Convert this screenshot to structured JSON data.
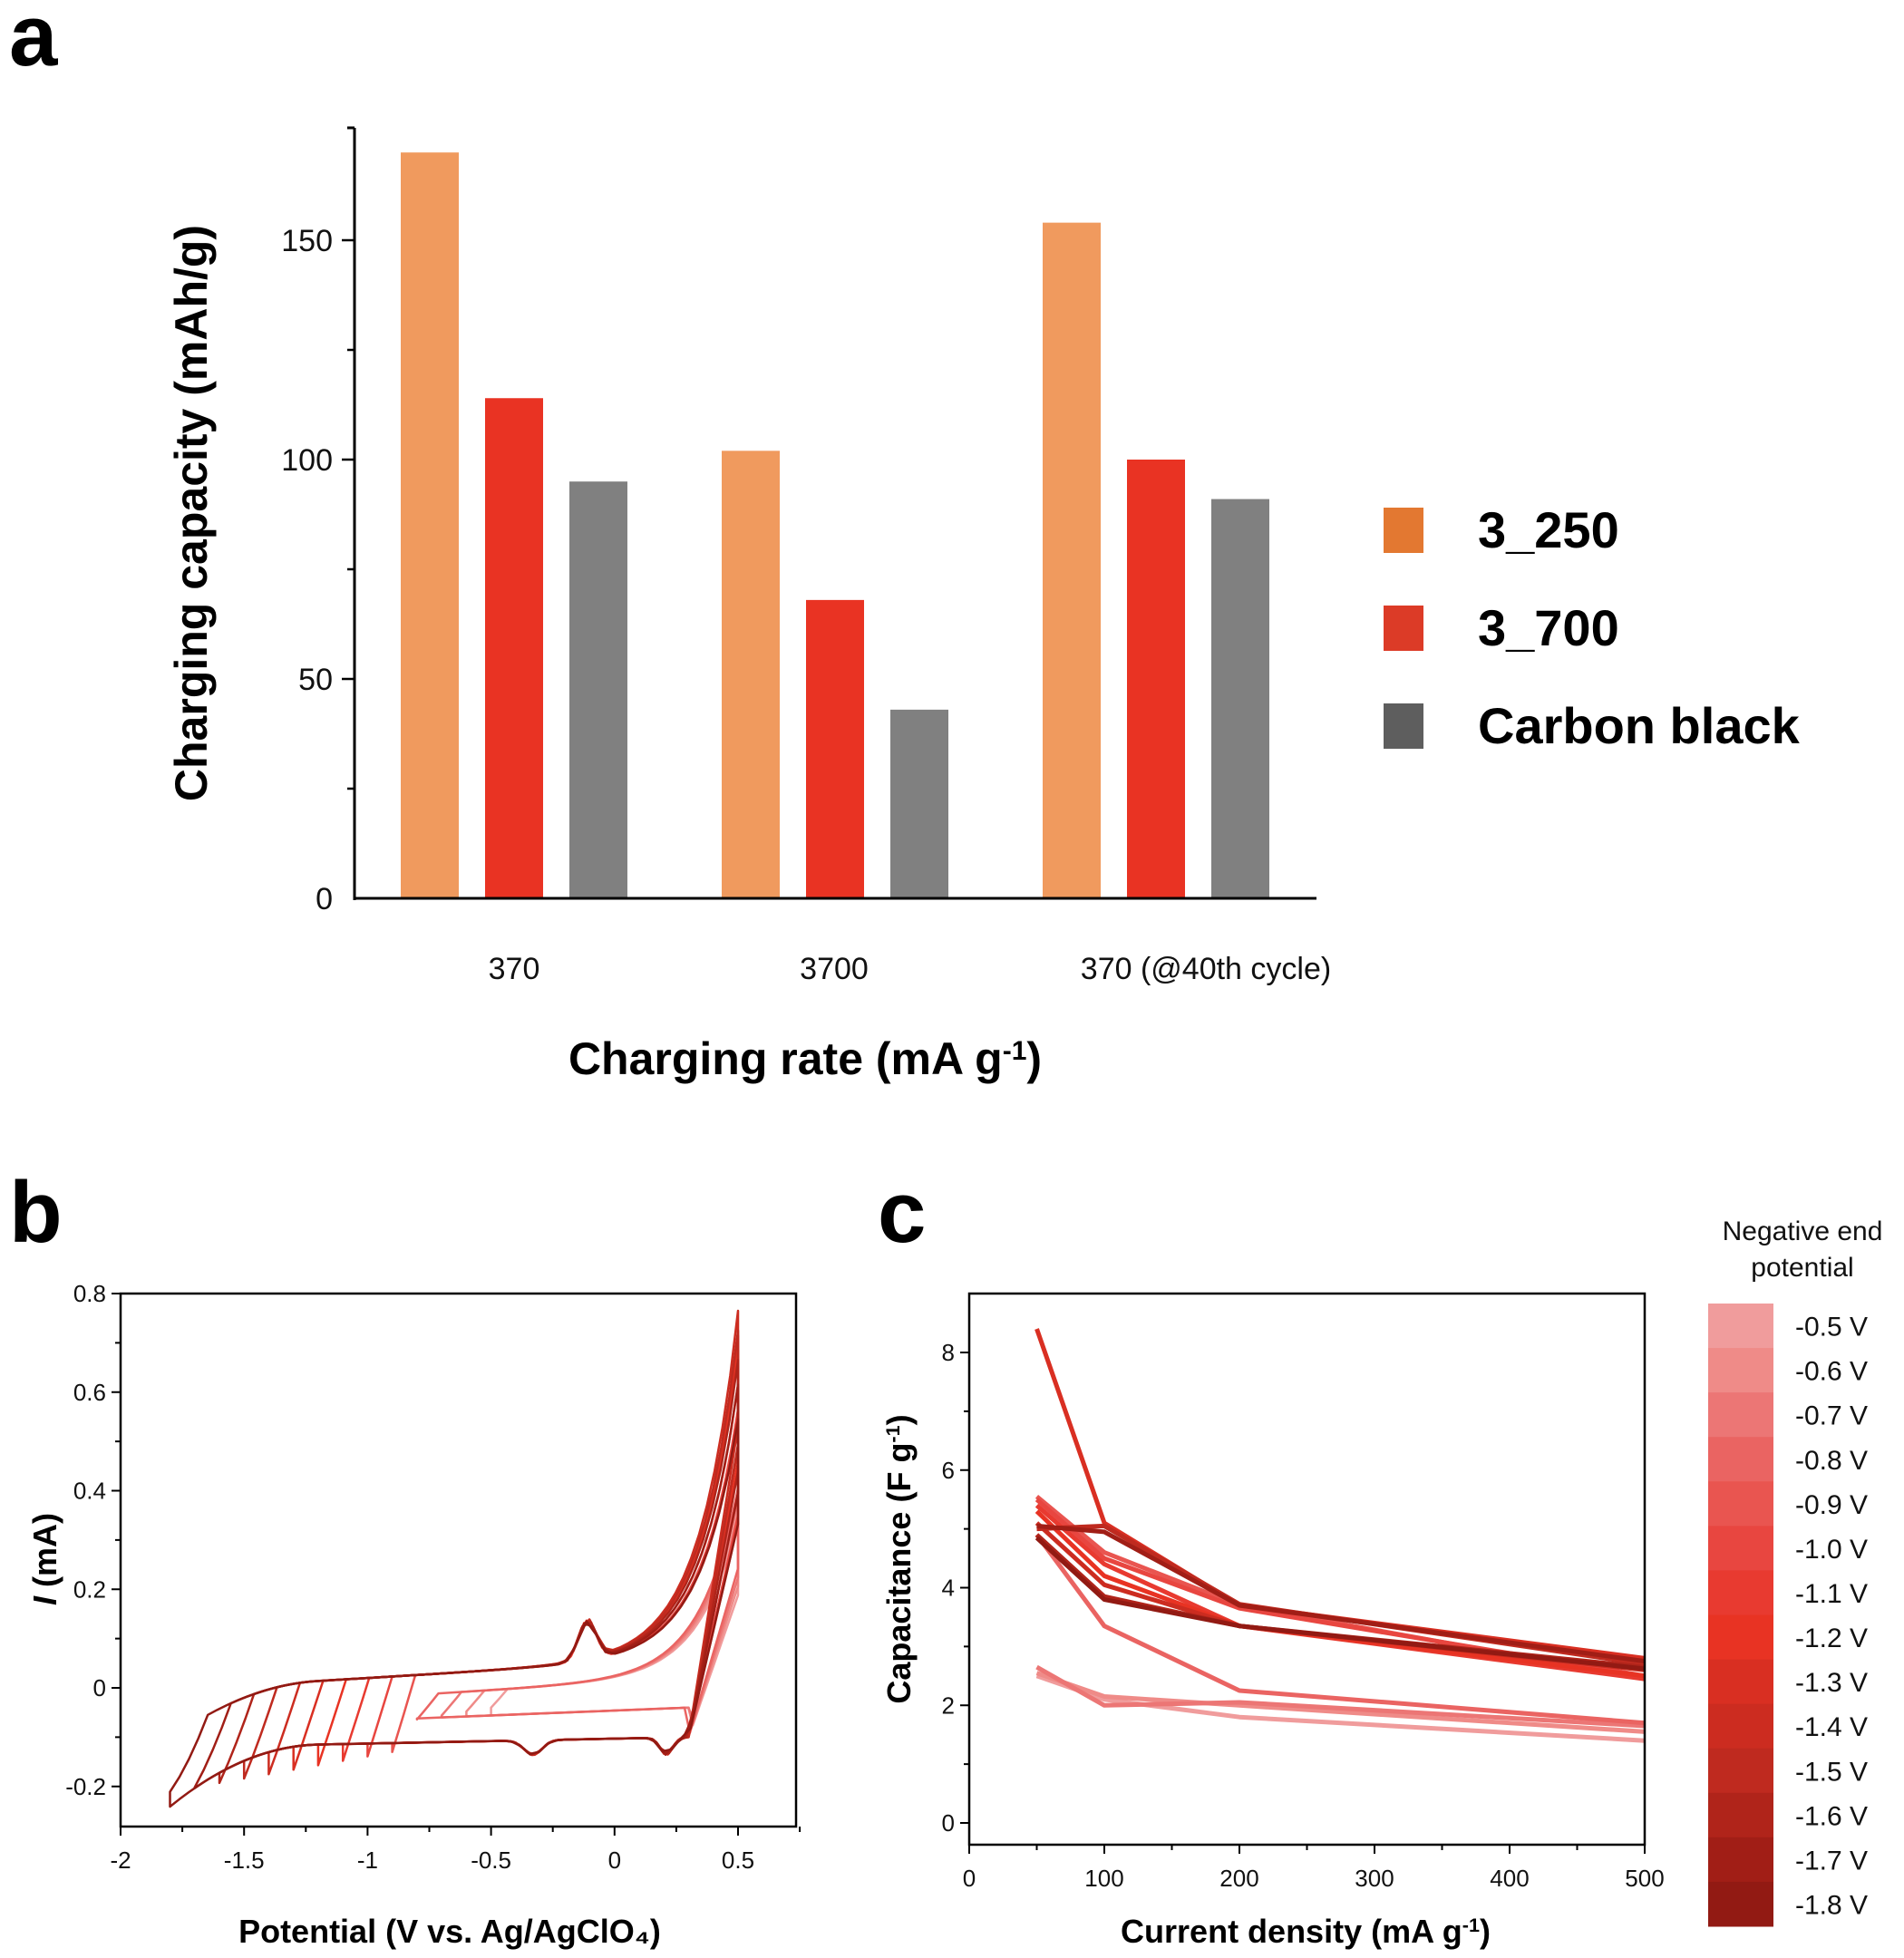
{
  "panels": {
    "a": "a",
    "b": "b",
    "c": "c"
  },
  "chart_data": [
    {
      "id": "a",
      "type": "bar",
      "title": "",
      "xlabel": "Charging rate (mA g⁻¹)",
      "ylabel": "Charging capacity (mAh/g)",
      "ylim": [
        0,
        175
      ],
      "yticks": [
        0,
        50,
        100,
        150
      ],
      "categories": [
        "370",
        "3700",
        "370 (@40th cycle)"
      ],
      "legend_position": "right",
      "series": [
        {
          "name": "3_250",
          "color": "#F09A5E",
          "legend_color": "#E37831",
          "values": [
            170,
            102,
            154
          ]
        },
        {
          "name": "3_700",
          "color": "#E93323",
          "legend_color": "#DC3B27",
          "values": [
            114,
            68,
            100
          ]
        },
        {
          "name": "Carbon black",
          "color": "#808080",
          "legend_color": "#5E5E5E",
          "values": [
            95,
            43,
            91
          ]
        }
      ]
    },
    {
      "id": "b",
      "type": "line",
      "title": "",
      "xlabel": "Potential (V vs. Ag/AgClO₄)",
      "ylabel": "I (mA)",
      "ylabel_italic_part": "I",
      "ylabel_rest": " (mA)",
      "xlim": [
        -2,
        0.75
      ],
      "ylim": [
        -0.28,
        0.8
      ],
      "xticks": [
        -2,
        -1.5,
        -1,
        -0.5,
        0,
        0.5
      ],
      "xtick_labels": [
        "-2",
        "-1.5",
        "-1",
        "-0.5",
        "0",
        "0.5"
      ],
      "yticks": [
        -0.2,
        0,
        0.2,
        0.4,
        0.6,
        0.8
      ],
      "ytick_labels": [
        "-0.2",
        "0",
        "0.2",
        "0.4",
        "0.6",
        "0.8"
      ],
      "description": "Cyclic voltammograms with negative end potential from -0.5 V to -1.8 V; upper limit 0.5 V",
      "series_end_potentials": [
        -0.5,
        -0.6,
        -0.7,
        -0.8,
        -0.9,
        -1.0,
        -1.1,
        -1.2,
        -1.3,
        -1.4,
        -1.5,
        -1.6,
        -1.7,
        -1.8
      ],
      "peak_current_at_0_5V": [
        0.32,
        0.34,
        0.36,
        0.38,
        0.48,
        0.5,
        0.55,
        0.62,
        0.65,
        0.7,
        0.66,
        0.6,
        0.55,
        0.48
      ]
    },
    {
      "id": "c",
      "type": "line",
      "title": "",
      "xlabel": "Current density (mA g⁻¹)",
      "ylabel": "Capacitance (F g⁻¹)",
      "xlim": [
        0,
        500
      ],
      "ylim": [
        -0.3,
        9
      ],
      "xticks": [
        0,
        100,
        200,
        300,
        400,
        500
      ],
      "yticks": [
        0,
        2,
        4,
        6,
        8
      ],
      "x": [
        50,
        100,
        200,
        500
      ],
      "series": [
        {
          "name": "-0.5 V",
          "values": [
            2.5,
            2.1,
            1.8,
            1.4
          ]
        },
        {
          "name": "-0.6 V",
          "values": [
            2.55,
            2.15,
            2.0,
            1.55
          ]
        },
        {
          "name": "-0.7 V",
          "values": [
            2.65,
            2.0,
            2.05,
            1.65
          ]
        },
        {
          "name": "-0.8 V",
          "values": [
            4.9,
            3.35,
            2.25,
            1.7
          ]
        },
        {
          "name": "-0.9 V",
          "values": [
            5.55,
            4.6,
            3.7,
            2.45
          ]
        },
        {
          "name": "-1.0 V",
          "values": [
            5.5,
            4.5,
            3.65,
            2.5
          ]
        },
        {
          "name": "-1.1 V",
          "values": [
            5.4,
            4.4,
            3.35,
            2.45
          ]
        },
        {
          "name": "-1.2 V",
          "values": [
            5.3,
            4.2,
            3.35,
            2.5
          ]
        },
        {
          "name": "-1.3 V",
          "values": [
            8.4,
            5.1,
            3.7,
            2.8
          ]
        },
        {
          "name": "-1.4 V",
          "values": [
            5.1,
            4.05,
            3.35,
            2.6
          ]
        },
        {
          "name": "-1.5 V",
          "values": [
            5.0,
            5.05,
            3.72,
            2.7
          ]
        },
        {
          "name": "-1.6 V",
          "values": [
            4.9,
            3.85,
            3.35,
            2.65
          ]
        },
        {
          "name": "-1.7 V",
          "values": [
            5.05,
            4.95,
            3.7,
            2.75
          ]
        },
        {
          "name": "-1.8 V",
          "values": [
            4.85,
            3.8,
            3.35,
            2.62
          ]
        }
      ]
    }
  ],
  "colorbar": {
    "title_line1": "Negative end",
    "title_line2": "potential",
    "entries": [
      {
        "label": "-0.5 V",
        "color": "#F09C9C"
      },
      {
        "label": "-0.6 V",
        "color": "#EF8B88"
      },
      {
        "label": "-0.7 V",
        "color": "#EC7675"
      },
      {
        "label": "-0.8 V",
        "color": "#EA6462"
      },
      {
        "label": "-0.9 V",
        "color": "#E95550"
      },
      {
        "label": "-1.0 V",
        "color": "#E84640"
      },
      {
        "label": "-1.1 V",
        "color": "#E83A30"
      },
      {
        "label": "-1.2 V",
        "color": "#E83323"
      },
      {
        "label": "-1.3 V",
        "color": "#D92F22"
      },
      {
        "label": "-1.4 V",
        "color": "#CC2C20"
      },
      {
        "label": "-1.5 V",
        "color": "#BF2A1F"
      },
      {
        "label": "-1.6 V",
        "color": "#B0241A"
      },
      {
        "label": "-1.7 V",
        "color": "#A11E16"
      },
      {
        "label": "-1.8 V",
        "color": "#921A13"
      }
    ]
  }
}
